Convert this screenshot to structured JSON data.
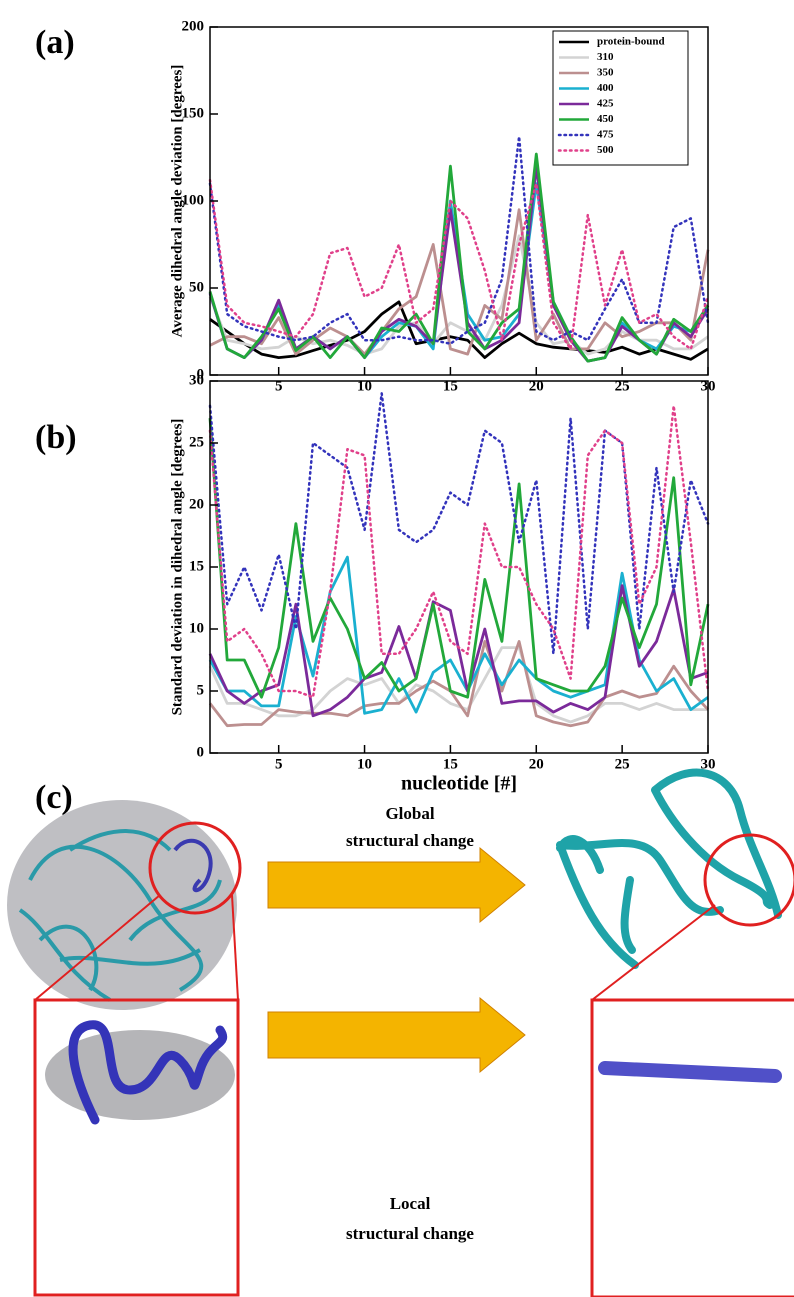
{
  "chart_data": [
    {
      "type": "line",
      "panel_label": "(a)",
      "ylabel": "Average dihedral angle deviation [degrees]",
      "x": [
        1,
        2,
        3,
        4,
        5,
        6,
        7,
        8,
        9,
        10,
        11,
        12,
        13,
        14,
        15,
        16,
        17,
        18,
        19,
        20,
        21,
        22,
        23,
        24,
        25,
        26,
        27,
        28,
        29,
        30
      ],
      "xlim": [
        1,
        30
      ],
      "xticks": [
        5,
        10,
        15,
        20,
        25,
        30
      ],
      "ylim": [
        0,
        200
      ],
      "yticks": [
        0,
        50,
        100,
        150,
        200
      ],
      "legend": "upper right",
      "series": [
        {
          "name": "protein-bound",
          "color": "#000000",
          "line_style": "solid",
          "values": [
            32,
            25,
            18,
            12,
            10,
            11,
            14,
            17,
            20,
            25,
            35,
            42,
            18,
            20,
            22,
            20,
            10,
            18,
            24,
            18,
            16,
            15,
            14,
            13,
            16,
            12,
            15,
            12,
            9,
            15
          ]
        },
        {
          "name": "310",
          "color": "#d3d3d3",
          "line_style": "solid",
          "values": [
            45,
            20,
            18,
            15,
            16,
            22,
            18,
            20,
            17,
            12,
            15,
            28,
            30,
            18,
            30,
            25,
            20,
            40,
            80,
            30,
            18,
            20,
            12,
            15,
            25,
            20,
            20,
            15,
            15,
            22
          ]
        },
        {
          "name": "350",
          "color": "#bc8f8f",
          "line_style": "solid",
          "values": [
            17,
            22,
            22,
            18,
            33,
            12,
            20,
            27,
            22,
            12,
            25,
            38,
            45,
            75,
            15,
            12,
            40,
            32,
            95,
            20,
            35,
            15,
            15,
            30,
            22,
            25,
            30,
            30,
            20,
            72
          ]
        },
        {
          "name": "400",
          "color": "#1ab0d0",
          "line_style": "solid",
          "values": [
            47,
            15,
            10,
            20,
            40,
            15,
            22,
            15,
            22,
            10,
            22,
            30,
            28,
            15,
            100,
            35,
            20,
            22,
            35,
            110,
            42,
            22,
            8,
            10,
            30,
            20,
            15,
            28,
            25,
            40
          ]
        },
        {
          "name": "425",
          "color": "#7b2a9a",
          "line_style": "solid",
          "values": [
            47,
            15,
            10,
            20,
            43,
            15,
            22,
            15,
            22,
            10,
            25,
            32,
            28,
            18,
            95,
            30,
            15,
            20,
            30,
            120,
            40,
            20,
            8,
            10,
            28,
            20,
            12,
            30,
            22,
            38
          ]
        },
        {
          "name": "450",
          "color": "#22a83a",
          "line_style": "solid",
          "values": [
            48,
            15,
            10,
            22,
            38,
            14,
            22,
            10,
            22,
            10,
            27,
            25,
            35,
            18,
            120,
            25,
            15,
            30,
            38,
            127,
            42,
            22,
            8,
            10,
            33,
            20,
            12,
            32,
            25,
            40
          ]
        },
        {
          "name": "475",
          "color": "#3333bb",
          "line_style": "dotted",
          "values": [
            110,
            35,
            28,
            25,
            22,
            20,
            22,
            30,
            35,
            20,
            20,
            22,
            20,
            20,
            18,
            25,
            30,
            55,
            137,
            25,
            20,
            25,
            20,
            38,
            55,
            30,
            30,
            85,
            90,
            30
          ]
        },
        {
          "name": "500",
          "color": "#e0408a",
          "line_style": "dotted",
          "values": [
            112,
            40,
            30,
            28,
            25,
            22,
            35,
            70,
            73,
            45,
            50,
            75,
            30,
            38,
            100,
            90,
            60,
            20,
            75,
            110,
            30,
            15,
            92,
            40,
            72,
            30,
            35,
            22,
            15,
            45
          ]
        }
      ]
    },
    {
      "type": "line",
      "panel_label": "(b)",
      "ylabel": "Standard deviation in dihedral angle [degrees]",
      "xlabel": "nucleotide [#]",
      "x": [
        1,
        2,
        3,
        4,
        5,
        6,
        7,
        8,
        9,
        10,
        11,
        12,
        13,
        14,
        15,
        16,
        17,
        18,
        19,
        20,
        21,
        22,
        23,
        24,
        25,
        26,
        27,
        28,
        29,
        30
      ],
      "xlim": [
        1,
        30
      ],
      "xticks": [
        5,
        10,
        15,
        20,
        25,
        30
      ],
      "ylim": [
        0,
        30
      ],
      "yticks": [
        0,
        5,
        10,
        15,
        20,
        25,
        30
      ],
      "series": [
        {
          "color": "#d3d3d3",
          "line_style": "solid",
          "values": [
            7,
            4,
            4,
            3.5,
            3,
            3,
            3.5,
            5,
            6,
            5.5,
            6,
            4,
            5.5,
            5,
            4,
            3.5,
            6,
            8.5,
            8.5,
            4,
            3,
            2.5,
            3,
            4,
            4,
            3.5,
            4,
            3.5,
            3.5,
            3.5
          ]
        },
        {
          "color": "#bc8f8f",
          "line_style": "solid",
          "values": [
            4,
            2.2,
            2.3,
            2.3,
            3.5,
            3.3,
            3.2,
            3.2,
            3,
            3.8,
            4,
            4,
            5,
            5.8,
            5,
            3,
            9,
            5,
            9,
            3,
            2.5,
            2.2,
            2.5,
            4.5,
            5,
            4.5,
            4.8,
            7,
            5,
            3.5
          ]
        },
        {
          "color": "#1ab0d0",
          "line_style": "solid",
          "values": [
            7.5,
            5,
            5,
            3.8,
            3.8,
            11,
            6.2,
            13,
            15.8,
            3.2,
            3.5,
            6,
            3.3,
            6.5,
            7.5,
            5,
            8,
            5.5,
            7.5,
            6,
            5,
            4.5,
            5,
            5.5,
            14.5,
            7.5,
            5,
            6,
            3.5,
            4.5
          ]
        },
        {
          "color": "#7b2a9a",
          "line_style": "solid",
          "values": [
            8,
            5,
            4,
            5,
            5.5,
            12,
            3,
            3.5,
            4.5,
            6,
            6.5,
            10.2,
            6,
            12.2,
            11.5,
            5,
            10,
            4,
            4.2,
            4.2,
            3.3,
            4,
            3.5,
            4.5,
            13.5,
            7,
            9,
            13.2,
            6,
            6.5
          ]
        },
        {
          "color": "#22a83a",
          "line_style": "solid",
          "values": [
            27,
            7.5,
            7.5,
            4.5,
            8.5,
            18.5,
            9,
            12.5,
            10,
            6,
            7.3,
            5,
            6,
            12,
            5,
            4.5,
            14,
            9,
            21.7,
            6,
            5.5,
            5,
            5,
            7,
            12.5,
            8.5,
            12,
            22.2,
            5.5,
            12
          ]
        },
        {
          "color": "#3333bb",
          "line_style": "dotted",
          "values": [
            28,
            12,
            15,
            11.5,
            16,
            10,
            25,
            24,
            23,
            18,
            29,
            18,
            17,
            18,
            21,
            20,
            26,
            25,
            17,
            22,
            8,
            27,
            10,
            26,
            25,
            10,
            23,
            13,
            22,
            18.5
          ]
        },
        {
          "color": "#e0408a",
          "line_style": "dotted",
          "values": [
            26,
            9,
            10,
            8,
            5,
            5,
            4.5,
            13,
            24.5,
            24,
            8,
            8,
            10,
            13,
            9,
            8,
            18.5,
            15,
            15,
            12,
            10,
            6,
            24,
            26,
            25,
            12,
            15,
            28,
            17,
            5
          ]
        }
      ]
    }
  ],
  "panel_c": {
    "label": "(c)",
    "global_text": [
      "Global",
      "structural change"
    ],
    "local_text": [
      "Local",
      "structural change"
    ]
  }
}
